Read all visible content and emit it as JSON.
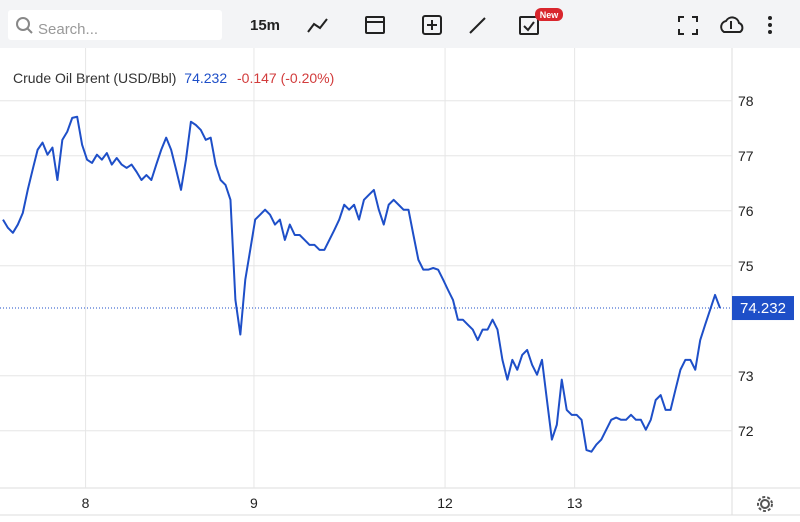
{
  "toolbar": {
    "search_placeholder": "Search...",
    "interval": "15m",
    "badge": "New"
  },
  "chart_data": {
    "type": "line",
    "title": "Crude Oil Brent (USD/Bbl)",
    "price": 74.232,
    "change": "-0.147 (-0.20%)",
    "color": "#1e4fc8",
    "grid": true,
    "xlim": [
      0,
      145
    ],
    "xticks": [
      {
        "value": 16.7,
        "label": "8"
      },
      {
        "value": 50.75,
        "label": "9"
      },
      {
        "value": 89.4,
        "label": "12"
      },
      {
        "value": 115.6,
        "label": "13"
      }
    ],
    "ylim": [
      70.96,
      78.96
    ],
    "yticks": [
      72,
      73,
      75,
      76,
      77,
      78
    ],
    "values": [
      75.84,
      75.69,
      75.6,
      75.75,
      75.96,
      76.38,
      76.75,
      77.11,
      77.24,
      77.02,
      77.15,
      76.56,
      77.29,
      77.44,
      77.69,
      77.71,
      77.2,
      76.93,
      76.87,
      77.02,
      76.93,
      77.05,
      76.84,
      76.96,
      76.84,
      76.78,
      76.84,
      76.71,
      76.56,
      76.65,
      76.56,
      76.84,
      77.11,
      77.33,
      77.11,
      76.75,
      76.38,
      76.93,
      77.62,
      77.56,
      77.47,
      77.29,
      77.33,
      76.84,
      76.56,
      76.47,
      76.2,
      74.38,
      73.75,
      74.75,
      75.29,
      75.84,
      75.93,
      76.02,
      75.93,
      75.75,
      75.84,
      75.47,
      75.75,
      75.56,
      75.56,
      75.47,
      75.38,
      75.38,
      75.29,
      75.29,
      75.47,
      75.65,
      75.84,
      76.11,
      76.02,
      76.11,
      75.84,
      76.2,
      76.29,
      76.38,
      76.02,
      75.75,
      76.11,
      76.2,
      76.11,
      76.02,
      76.02,
      75.56,
      75.11,
      74.93,
      74.93,
      74.96,
      74.93,
      74.75,
      74.56,
      74.38,
      74.02,
      74.02,
      73.93,
      73.84,
      73.65,
      73.84,
      73.84,
      74.02,
      73.84,
      73.29,
      72.93,
      73.29,
      73.11,
      73.38,
      73.47,
      73.2,
      73.02,
      73.29,
      72.56,
      71.84,
      72.11,
      72.93,
      72.38,
      72.29,
      72.29,
      72.2,
      71.65,
      71.62,
      71.75,
      71.84,
      72.02,
      72.2,
      72.24,
      72.2,
      72.2,
      72.29,
      72.2,
      72.2,
      72.02,
      72.2,
      72.56,
      72.65,
      72.38,
      72.38,
      72.75,
      73.11,
      73.29,
      73.29,
      73.11,
      73.65,
      73.93,
      74.2,
      74.47,
      74.232
    ]
  }
}
